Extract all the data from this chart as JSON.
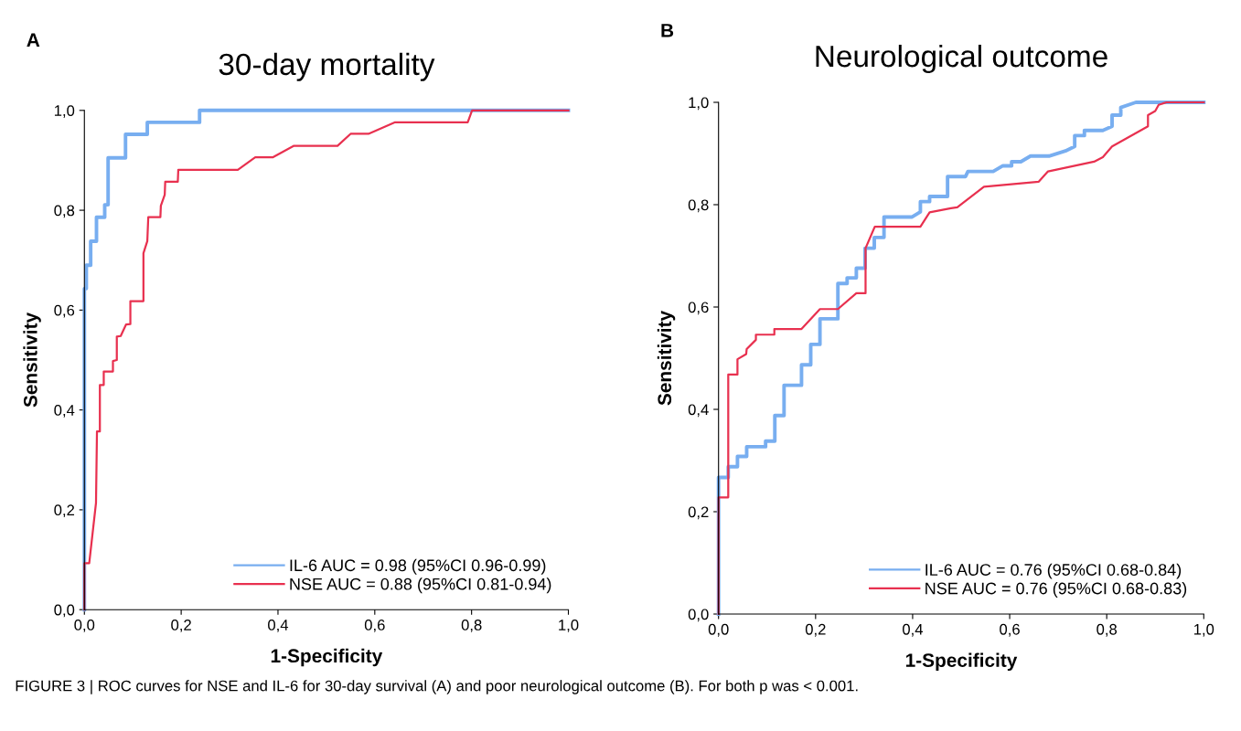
{
  "chart_data": [
    {
      "type": "line",
      "title": "30-day mortality",
      "xlabel": "1-Specificity",
      "ylabel": "Sensitivity",
      "annotations": [
        "A",
        "FIGURE 3 | ROC curves for NSE and IL-6 for 30-day survival (A) and poor neurological outcome (B). For both p was < 0.001."
      ],
      "xlim": [
        0,
        1
      ],
      "ylim": [
        0,
        1
      ],
      "xticks": [
        {
          "value": 0,
          "label": "0,0"
        },
        {
          "value": 0.2,
          "label": "0,2"
        },
        {
          "value": 0.4,
          "label": "0,4"
        },
        {
          "value": 0.6,
          "label": "0,6"
        },
        {
          "value": 0.8,
          "label": "0,8"
        },
        {
          "value": 1,
          "label": "1,0"
        }
      ],
      "yticks": [
        {
          "value": 0,
          "label": "0,0"
        },
        {
          "value": 0.2,
          "label": "0,2"
        },
        {
          "value": 0.4,
          "label": "0,4"
        },
        {
          "value": 0.6,
          "label": "0,6"
        },
        {
          "value": 0.8,
          "label": "0,8"
        },
        {
          "value": 1,
          "label": "1,0"
        }
      ],
      "grid": false,
      "legend": "bottom right",
      "series": [
        {
          "name": "IL-6 AUC = 0.98 (95%CI 0.96-0.99)",
          "color": "#78aef0",
          "x": [
            0,
            0,
            0.004,
            0.004,
            0.013,
            0.013,
            0.025,
            0.025,
            0.042,
            0.042,
            0.049,
            0.049,
            0.085,
            0.085,
            0.13,
            0.13,
            0.238,
            0.238,
            1
          ],
          "values": [
            0,
            0.643,
            0.643,
            0.69,
            0.69,
            0.738,
            0.738,
            0.786,
            0.786,
            0.811,
            0.811,
            0.905,
            0.905,
            0.952,
            0.952,
            0.976,
            0.976,
            1,
            1
          ]
        },
        {
          "name": "NSE AUC = 0.88 (95%CI 0.81-0.94)",
          "color": "#e8304f",
          "x": [
            0,
            0,
            0.01,
            0.024,
            0.026,
            0.032,
            0.032,
            0.04,
            0.04,
            0.059,
            0.059,
            0.067,
            0.067,
            0.075,
            0.086,
            0.095,
            0.095,
            0.122,
            0.122,
            0.13,
            0.132,
            0.157,
            0.158,
            0.166,
            0.167,
            0.193,
            0.194,
            0.317,
            0.353,
            0.389,
            0.433,
            0.523,
            0.55,
            0.587,
            0.641,
            0.792,
            0.801,
            1
          ],
          "values": [
            0,
            0.093,
            0.093,
            0.214,
            0.357,
            0.357,
            0.45,
            0.45,
            0.477,
            0.477,
            0.498,
            0.5,
            0.547,
            0.548,
            0.571,
            0.572,
            0.618,
            0.618,
            0.714,
            0.738,
            0.786,
            0.786,
            0.809,
            0.831,
            0.857,
            0.857,
            0.881,
            0.881,
            0.906,
            0.906,
            0.929,
            0.929,
            0.953,
            0.953,
            0.976,
            0.976,
            1,
            1
          ]
        }
      ]
    },
    {
      "type": "line",
      "title": "Neurological outcome",
      "xlabel": "1-Specificity",
      "ylabel": "Sensitivity",
      "annotations": [
        "B"
      ],
      "xlim": [
        0,
        1
      ],
      "ylim": [
        0,
        1
      ],
      "xticks": [
        {
          "value": 0,
          "label": "0,0"
        },
        {
          "value": 0.2,
          "label": "0,2"
        },
        {
          "value": 0.4,
          "label": "0,4"
        },
        {
          "value": 0.6,
          "label": "0,6"
        },
        {
          "value": 0.8,
          "label": "0,8"
        },
        {
          "value": 1,
          "label": "1,0"
        }
      ],
      "yticks": [
        {
          "value": 0,
          "label": "0,0"
        },
        {
          "value": 0.2,
          "label": "0,2"
        },
        {
          "value": 0.4,
          "label": "0,4"
        },
        {
          "value": 0.6,
          "label": "0,6"
        },
        {
          "value": 0.8,
          "label": "0,8"
        },
        {
          "value": 1,
          "label": "1,0"
        }
      ],
      "grid": false,
      "legend": "bottom right",
      "series": [
        {
          "name": "IL-6 AUC = 0.76 (95%CI 0.68-0.84)",
          "color": "#78aef0",
          "x": [
            0,
            0,
            0.02,
            0.02,
            0.039,
            0.039,
            0.058,
            0.058,
            0.097,
            0.097,
            0.116,
            0.116,
            0.135,
            0.135,
            0.171,
            0.171,
            0.19,
            0.19,
            0.209,
            0.209,
            0.246,
            0.246,
            0.265,
            0.265,
            0.284,
            0.284,
            0.302,
            0.302,
            0.321,
            0.321,
            0.341,
            0.341,
            0.399,
            0.416,
            0.416,
            0.435,
            0.435,
            0.472,
            0.472,
            0.509,
            0.514,
            0.566,
            0.586,
            0.604,
            0.604,
            0.623,
            0.643,
            0.681,
            0.715,
            0.734,
            0.734,
            0.754,
            0.754,
            0.792,
            0.811,
            0.811,
            0.829,
            0.829,
            0.86,
            1
          ],
          "values": [
            0,
            0.267,
            0.267,
            0.288,
            0.288,
            0.308,
            0.308,
            0.327,
            0.327,
            0.338,
            0.338,
            0.388,
            0.388,
            0.447,
            0.447,
            0.487,
            0.487,
            0.527,
            0.527,
            0.577,
            0.577,
            0.646,
            0.646,
            0.657,
            0.657,
            0.676,
            0.676,
            0.715,
            0.715,
            0.736,
            0.736,
            0.776,
            0.776,
            0.786,
            0.806,
            0.806,
            0.816,
            0.816,
            0.855,
            0.855,
            0.865,
            0.865,
            0.876,
            0.876,
            0.884,
            0.884,
            0.895,
            0.895,
            0.905,
            0.914,
            0.935,
            0.935,
            0.945,
            0.945,
            0.953,
            0.975,
            0.975,
            0.99,
            1,
            1
          ]
        },
        {
          "name": "NSE AUC = 0.76 (95%CI 0.68-0.83)",
          "color": "#e8304f",
          "x": [
            0,
            0,
            0.02,
            0.02,
            0.039,
            0.039,
            0.057,
            0.058,
            0.077,
            0.077,
            0.115,
            0.115,
            0.171,
            0.209,
            0.246,
            0.284,
            0.303,
            0.303,
            0.322,
            0.416,
            0.435,
            0.479,
            0.492,
            0.547,
            0.66,
            0.679,
            0.774,
            0.792,
            0.811,
            0.885,
            0.885,
            0.9,
            0.907,
            0.923,
            1
          ],
          "values": [
            0,
            0.228,
            0.228,
            0.468,
            0.468,
            0.498,
            0.508,
            0.518,
            0.536,
            0.546,
            0.546,
            0.557,
            0.557,
            0.596,
            0.596,
            0.627,
            0.627,
            0.715,
            0.757,
            0.757,
            0.785,
            0.793,
            0.795,
            0.835,
            0.845,
            0.865,
            0.884,
            0.893,
            0.914,
            0.953,
            0.975,
            0.983,
            0.995,
            1,
            1
          ]
        }
      ]
    }
  ]
}
